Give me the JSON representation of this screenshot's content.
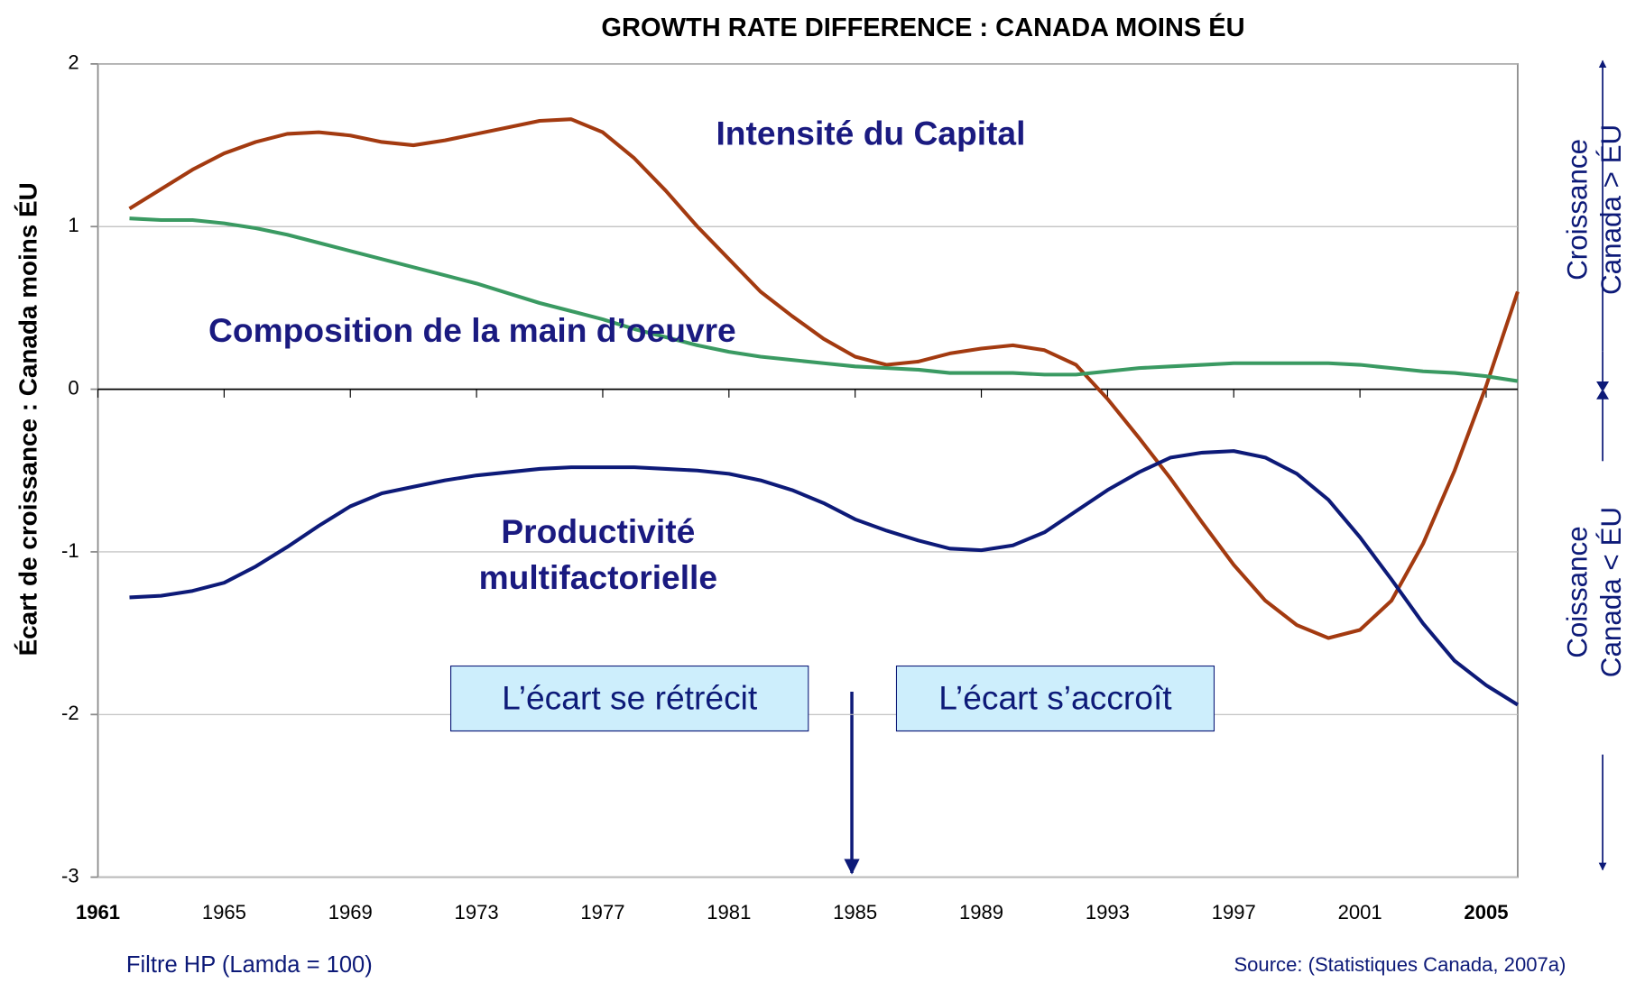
{
  "chart_data": {
    "type": "line",
    "title": "GROWTH RATE DIFFERENCE : CANADA MOINS ÉU",
    "y_label": "Écart de croissance : Canada moins  ÉU",
    "x": [
      1962,
      1963,
      1964,
      1965,
      1966,
      1967,
      1968,
      1969,
      1970,
      1971,
      1972,
      1973,
      1974,
      1975,
      1976,
      1977,
      1978,
      1979,
      1980,
      1981,
      1982,
      1983,
      1984,
      1985,
      1986,
      1987,
      1988,
      1989,
      1990,
      1991,
      1992,
      1993,
      1994,
      1995,
      1996,
      1997,
      1998,
      1999,
      2000,
      2001,
      2002,
      2003,
      2004,
      2005,
      2006
    ],
    "series": [
      {
        "name": "Intensité du Capital",
        "color": "#a33a10",
        "values": [
          1.11,
          1.23,
          1.35,
          1.45,
          1.52,
          1.57,
          1.58,
          1.56,
          1.52,
          1.5,
          1.53,
          1.57,
          1.61,
          1.65,
          1.66,
          1.58,
          1.42,
          1.22,
          1.0,
          0.8,
          0.6,
          0.45,
          0.31,
          0.2,
          0.15,
          0.17,
          0.22,
          0.25,
          0.27,
          0.24,
          0.15,
          -0.06,
          -0.3,
          -0.55,
          -0.82,
          -1.08,
          -1.3,
          -1.45,
          -1.53,
          -1.48,
          -1.3,
          -0.95,
          -0.5,
          0.02,
          0.6
        ]
      },
      {
        "name": "Composition de la main d’oeuvre",
        "color": "#3a9a62",
        "values": [
          1.05,
          1.04,
          1.04,
          1.02,
          0.99,
          0.95,
          0.9,
          0.85,
          0.8,
          0.75,
          0.7,
          0.65,
          0.59,
          0.53,
          0.48,
          0.43,
          0.37,
          0.32,
          0.27,
          0.23,
          0.2,
          0.18,
          0.16,
          0.14,
          0.13,
          0.12,
          0.1,
          0.1,
          0.1,
          0.09,
          0.09,
          0.11,
          0.13,
          0.14,
          0.15,
          0.16,
          0.16,
          0.16,
          0.16,
          0.15,
          0.13,
          0.11,
          0.1,
          0.08,
          0.05
        ]
      },
      {
        "name": "Productivité multifactorielle",
        "color": "#0d1a78",
        "values": [
          -1.28,
          -1.27,
          -1.24,
          -1.19,
          -1.09,
          -0.97,
          -0.84,
          -0.72,
          -0.64,
          -0.6,
          -0.56,
          -0.53,
          -0.51,
          -0.49,
          -0.48,
          -0.48,
          -0.48,
          -0.49,
          -0.5,
          -0.52,
          -0.56,
          -0.62,
          -0.7,
          -0.8,
          -0.87,
          -0.93,
          -0.98,
          -0.99,
          -0.96,
          -0.88,
          -0.75,
          -0.62,
          -0.51,
          -0.42,
          -0.39,
          -0.38,
          -0.42,
          -0.52,
          -0.68,
          -0.91,
          -1.17,
          -1.44,
          -1.67,
          -1.82,
          -1.94
        ]
      }
    ],
    "xlim": [
      1961,
      2006
    ],
    "xticks": [
      1961,
      1965,
      1969,
      1973,
      1977,
      1981,
      1985,
      1989,
      1993,
      1997,
      2001,
      2005
    ],
    "ylim": [
      -3,
      2
    ],
    "yticks": [
      -3,
      -2,
      -1,
      0,
      1,
      2
    ],
    "grid": true,
    "annotations": [
      "L’écart se rétrécit",
      "L’écart s’accroît"
    ],
    "right_labels": [
      "Croissance Canada > ÉU",
      "Coissance Canada < ÉU"
    ],
    "note": "Filtre HP (Lamda = 100)",
    "source": "Source: (Statistiques Canada, 2007a)"
  }
}
